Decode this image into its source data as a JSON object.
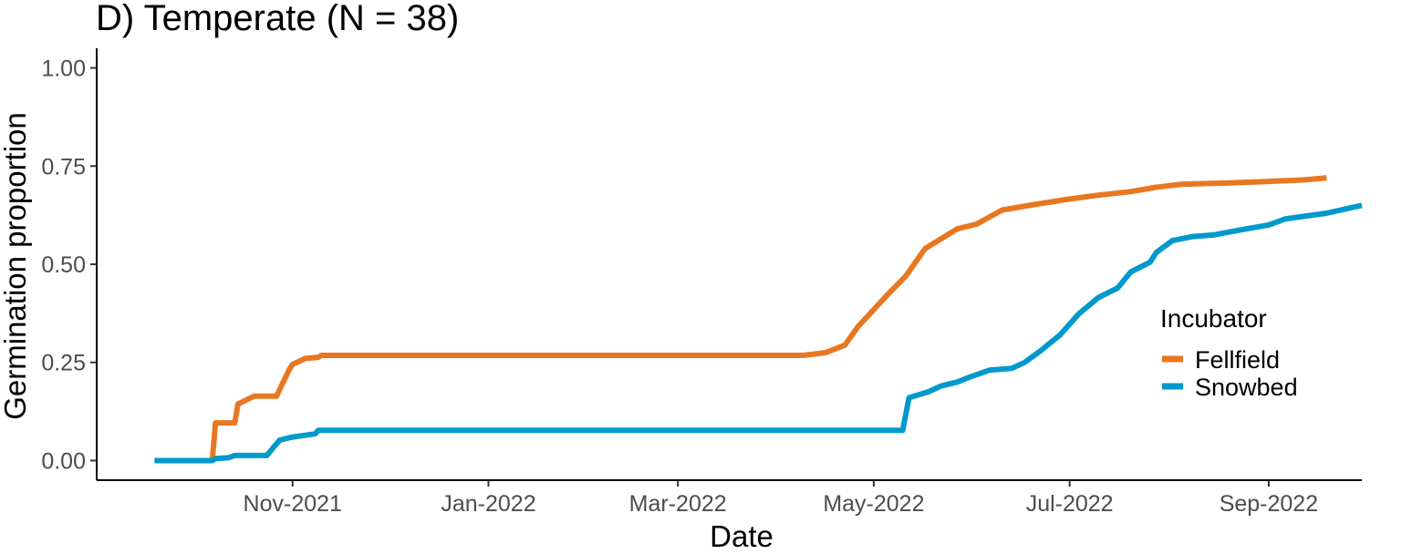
{
  "chart_data": {
    "type": "line",
    "title": "D) Temperate (N = 38)",
    "xlabel": "Date",
    "ylabel": "Germination proportion",
    "xlim": [
      "2021-09-01",
      "2022-09-30"
    ],
    "ylim": [
      -0.05,
      1.05
    ],
    "x_ticks": [
      {
        "date": "2021-11-01",
        "label": "Nov-2021"
      },
      {
        "date": "2022-01-01",
        "label": "Jan-2022"
      },
      {
        "date": "2022-03-01",
        "label": "Mar-2022"
      },
      {
        "date": "2022-05-01",
        "label": "May-2022"
      },
      {
        "date": "2022-07-01",
        "label": "Jul-2022"
      },
      {
        "date": "2022-09-01",
        "label": "Sep-2022"
      }
    ],
    "y_ticks": [
      {
        "value": 0,
        "label": "0.00"
      },
      {
        "value": 0.25,
        "label": "0.25"
      },
      {
        "value": 0.5,
        "label": "0.50"
      },
      {
        "value": 0.75,
        "label": "0.75"
      },
      {
        "value": 1,
        "label": "1.00"
      }
    ],
    "grid": false,
    "legend": {
      "title": "Incubator",
      "position": "right"
    },
    "series": [
      {
        "name": "Fellfield",
        "color": "#E87722",
        "points": [
          [
            "2021-09-19",
            0.0
          ],
          [
            "2021-10-07",
            0.0
          ],
          [
            "2021-10-08",
            0.096
          ],
          [
            "2021-10-14",
            0.096
          ],
          [
            "2021-10-15",
            0.144
          ],
          [
            "2021-10-20",
            0.164
          ],
          [
            "2021-10-27",
            0.164
          ],
          [
            "2021-10-31",
            0.232
          ],
          [
            "2021-11-01",
            0.245
          ],
          [
            "2021-11-05",
            0.26
          ],
          [
            "2021-11-09",
            0.263
          ],
          [
            "2021-11-10",
            0.268
          ],
          [
            "2022-04-09",
            0.268
          ],
          [
            "2022-04-16",
            0.275
          ],
          [
            "2022-04-22",
            0.294
          ],
          [
            "2022-04-26",
            0.34
          ],
          [
            "2022-05-05",
            0.42
          ],
          [
            "2022-05-11",
            0.47
          ],
          [
            "2022-05-17",
            0.54
          ],
          [
            "2022-05-23",
            0.57
          ],
          [
            "2022-05-27",
            0.59
          ],
          [
            "2022-06-02",
            0.602
          ],
          [
            "2022-06-10",
            0.638
          ],
          [
            "2022-06-20",
            0.652
          ],
          [
            "2022-06-30",
            0.665
          ],
          [
            "2022-07-10",
            0.676
          ],
          [
            "2022-07-20",
            0.685
          ],
          [
            "2022-07-28",
            0.696
          ],
          [
            "2022-08-05",
            0.704
          ],
          [
            "2022-08-20",
            0.707
          ],
          [
            "2022-09-01",
            0.711
          ],
          [
            "2022-09-12",
            0.715
          ],
          [
            "2022-09-19",
            0.72
          ]
        ]
      },
      {
        "name": "Snowbed",
        "color": "#0099CC",
        "points": [
          [
            "2021-09-19",
            0.0
          ],
          [
            "2021-10-07",
            0.0
          ],
          [
            "2021-10-08",
            0.005
          ],
          [
            "2021-10-12",
            0.007
          ],
          [
            "2021-10-14",
            0.013
          ],
          [
            "2021-10-24",
            0.013
          ],
          [
            "2021-10-26",
            0.033
          ],
          [
            "2021-10-28",
            0.052
          ],
          [
            "2021-11-01",
            0.06
          ],
          [
            "2021-11-08",
            0.068
          ],
          [
            "2021-11-09",
            0.077
          ],
          [
            "2022-05-10",
            0.077
          ],
          [
            "2022-05-12",
            0.16
          ],
          [
            "2022-05-18",
            0.175
          ],
          [
            "2022-05-22",
            0.19
          ],
          [
            "2022-05-27",
            0.2
          ],
          [
            "2022-05-31",
            0.213
          ],
          [
            "2022-06-06",
            0.23
          ],
          [
            "2022-06-13",
            0.235
          ],
          [
            "2022-06-17",
            0.25
          ],
          [
            "2022-06-22",
            0.28
          ],
          [
            "2022-06-28",
            0.32
          ],
          [
            "2022-07-04",
            0.375
          ],
          [
            "2022-07-10",
            0.415
          ],
          [
            "2022-07-16",
            0.44
          ],
          [
            "2022-07-20",
            0.48
          ],
          [
            "2022-07-26",
            0.505
          ],
          [
            "2022-07-28",
            0.53
          ],
          [
            "2022-08-02",
            0.56
          ],
          [
            "2022-08-08",
            0.57
          ],
          [
            "2022-08-15",
            0.575
          ],
          [
            "2022-08-25",
            0.59
          ],
          [
            "2022-09-01",
            0.6
          ],
          [
            "2022-09-06",
            0.615
          ],
          [
            "2022-09-12",
            0.622
          ],
          [
            "2022-09-19",
            0.63
          ],
          [
            "2022-09-26",
            0.643
          ],
          [
            "2022-09-30",
            0.65
          ]
        ]
      }
    ]
  }
}
